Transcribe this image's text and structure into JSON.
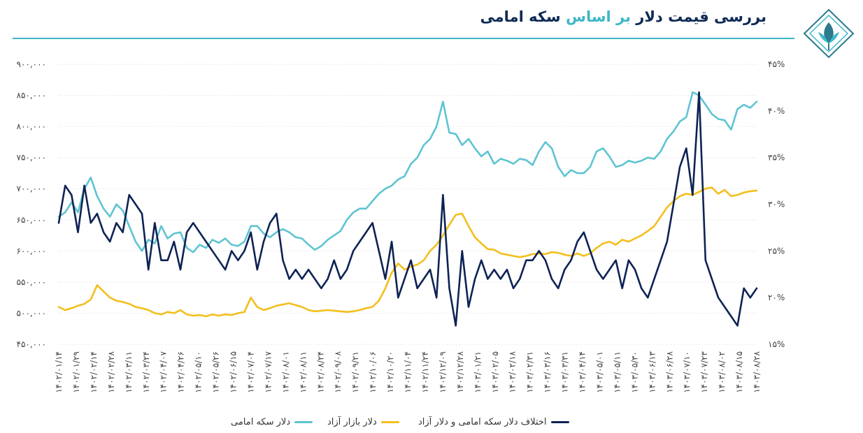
{
  "header": {
    "title_part1": "بررسی ",
    "title_part2": "قیمت دلار ",
    "title_accent": "بر اساس",
    "title_part3": " سکه امامی"
  },
  "colors": {
    "coin_dollar": "#5fc4d2",
    "free_dollar": "#f3bf1d",
    "difference": "#0e2255",
    "grid": "#d9d9d9",
    "accent": "#3fb7c9"
  },
  "chart_data": {
    "type": "line",
    "title": "بررسی قیمت دلار بر اساس سکه امامی",
    "y_left": {
      "min": 450000,
      "max": 900000,
      "ticks": [
        "۴۵۰,۰۰۰",
        "۵۰۰,۰۰۰",
        "۵۵۰,۰۰۰",
        "۶۰۰,۰۰۰",
        "۶۵۰,۰۰۰",
        "۷۰۰,۰۰۰",
        "۷۵۰,۰۰۰",
        "۸۰۰,۰۰۰",
        "۸۵۰,۰۰۰",
        "۹۰۰,۰۰۰"
      ]
    },
    "y_right": {
      "min": 15,
      "max": 45,
      "ticks": [
        "۱۵%",
        "۲۰%",
        "۲۵%",
        "۳۰%",
        "۳۵%",
        "۴۰%",
        "۴۵%"
      ]
    },
    "x_labels": [
      "۱۴۰۲/۰۱/۱۴",
      "۱۴۰۲/۰۱/۲۹",
      "۱۴۰۲/۰۲/۱۴",
      "۱۴۰۲/۰۲/۲۸",
      "۱۴۰۲/۰۳/۱۱",
      "۱۴۰۲/۰۳/۲۴",
      "۱۴۰۲/۰۴/۰۷",
      "۱۴۰۲/۰۴/۲۶",
      "۱۴۰۲/۰۵/۱۰",
      "۱۴۰۲/۰۵/۲۶",
      "۱۴۰۲/۰۶/۱۵",
      "۱۴۰۲/۰۷/۰۴",
      "۱۴۰۲/۰۷/۱۷",
      "۱۴۰۲/۰۸/۰۱",
      "۱۴۰۲/۰۸/۱۱",
      "۱۴۰۲/۰۸/۲۴",
      "۱۴۰۲/۰۹/۰۸",
      "۱۴۰۲/۰۹/۲۱",
      "۱۴۰۲/۱۰/۰۶",
      "۱۴۰۲/۱۰/۲۰",
      "۱۴۰۲/۱۱/۰۴",
      "۱۴۰۲/۱۱/۲۴",
      "۱۴۰۲/۱۲/۰۹",
      "۱۴۰۲/۱۲/۲۸",
      "۱۴۰۳/۰۱/۲۱",
      "۱۴۰۳/۰۲/۰۵",
      "۱۴۰۳/۰۲/۱۸",
      "۱۴۰۳/۰۲/۳۱",
      "۱۴۰۳/۰۳/۱۶",
      "۱۴۰۳/۰۳/۳۱",
      "۱۴۰۳/۰۴/۱۴",
      "۱۴۰۳/۰۵/۰۱",
      "۱۴۰۳/۰۵/۱۱",
      "۱۴۰۳/۰۵/۳۰",
      "۱۴۰۳/۰۶/۱۳",
      "۱۴۰۳/۰۶/۲۸",
      "۱۴۰۳/۰۷/۱۰",
      "۱۴۰۳/۰۷/۲۳",
      "۱۴۰۳/۰۸/۰۲",
      "۱۴۰۳/۰۸/۱۵",
      "۱۴۰۳/۰۸/۲۸"
    ],
    "grid": true,
    "legend_position": "bottom",
    "series": [
      {
        "name": "دلار سکه امامی",
        "axis": "left",
        "color": "#5fc4d2",
        "values": [
          655000,
          662000,
          678000,
          662000,
          700000,
          718000,
          688000,
          668000,
          655000,
          675000,
          665000,
          640000,
          615000,
          600000,
          618000,
          612000,
          640000,
          620000,
          628000,
          630000,
          605000,
          598000,
          610000,
          605000,
          618000,
          613000,
          620000,
          610000,
          608000,
          615000,
          640000,
          640000,
          628000,
          622000,
          630000,
          635000,
          630000,
          622000,
          620000,
          610000,
          602000,
          608000,
          618000,
          625000,
          632000,
          650000,
          662000,
          668000,
          668000,
          680000,
          692000,
          700000,
          705000,
          715000,
          720000,
          740000,
          750000,
          770000,
          780000,
          800000,
          840000,
          790000,
          788000,
          770000,
          780000,
          765000,
          752000,
          760000,
          740000,
          748000,
          745000,
          740000,
          748000,
          746000,
          738000,
          760000,
          775000,
          765000,
          735000,
          720000,
          730000,
          725000,
          725000,
          735000,
          760000,
          765000,
          752000,
          735000,
          738000,
          745000,
          742000,
          745000,
          750000,
          748000,
          760000,
          780000,
          792000,
          808000,
          815000,
          855000,
          850000,
          835000,
          820000,
          812000,
          810000,
          795000,
          828000,
          835000,
          830000,
          840000
        ]
      },
      {
        "name": "دلار بازار آزاد",
        "axis": "left",
        "color": "#f3bf1d",
        "values": [
          510000,
          505000,
          508000,
          512000,
          515000,
          522000,
          545000,
          535000,
          525000,
          520000,
          518000,
          515000,
          510000,
          508000,
          505000,
          500000,
          498000,
          502000,
          500000,
          505000,
          498000,
          496000,
          497000,
          495000,
          498000,
          496000,
          498000,
          497000,
          500000,
          502000,
          525000,
          510000,
          505000,
          508000,
          512000,
          514000,
          516000,
          513000,
          510000,
          505000,
          503000,
          504000,
          505000,
          504000,
          503000,
          502000,
          503000,
          505000,
          508000,
          510000,
          520000,
          540000,
          565000,
          580000,
          570000,
          575000,
          578000,
          585000,
          600000,
          610000,
          625000,
          642000,
          658000,
          660000,
          640000,
          622000,
          612000,
          603000,
          602000,
          596000,
          594000,
          592000,
          590000,
          592000,
          595000,
          596000,
          595000,
          598000,
          597000,
          594000,
          592000,
          596000,
          592000,
          596000,
          605000,
          612000,
          615000,
          610000,
          618000,
          615000,
          620000,
          625000,
          632000,
          640000,
          655000,
          670000,
          680000,
          688000,
          692000,
          690000,
          695000,
          700000,
          702000,
          692000,
          698000,
          688000,
          690000,
          694000,
          696000,
          697000
        ]
      },
      {
        "name": "اختلاف دلار سکه امامی و دلار آزاد",
        "axis": "right",
        "color": "#0e2255",
        "values": [
          28,
          32,
          31,
          27,
          32,
          28,
          29,
          27,
          26,
          28,
          27,
          31,
          30,
          29,
          23,
          28,
          24,
          24,
          26,
          23,
          27,
          28,
          27,
          26,
          25,
          24,
          23,
          25,
          24,
          25,
          27,
          23,
          26,
          28,
          29,
          24,
          22,
          23,
          22,
          23,
          22,
          21,
          22,
          24,
          22,
          23,
          25,
          26,
          27,
          28,
          25,
          22,
          26,
          20,
          22,
          24,
          21,
          22,
          23,
          20,
          31,
          21,
          17,
          25,
          19,
          22,
          24,
          22,
          23,
          22,
          23,
          21,
          22,
          24,
          24,
          25,
          24,
          22,
          21,
          23,
          24,
          26,
          27,
          25,
          23,
          22,
          23,
          24,
          21,
          24,
          23,
          21,
          20,
          22,
          24,
          26,
          30,
          34,
          36,
          31,
          42,
          24,
          22,
          20,
          19,
          18,
          17,
          21,
          20,
          21
        ]
      }
    ]
  },
  "legend": [
    {
      "label": "دلار سکه امامی",
      "color": "#5fc4d2"
    },
    {
      "label": "دلار بازار آزاد",
      "color": "#f3bf1d"
    },
    {
      "label": "اختلاف دلار سکه امامی و دلار آزاد",
      "color": "#0e2255"
    }
  ]
}
